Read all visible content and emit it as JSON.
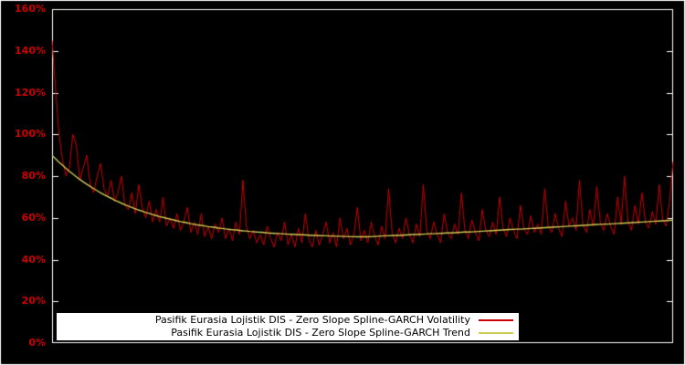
{
  "chart": {
    "background": "#000000",
    "border_color": "#ffffff",
    "axis_label_color": "#cc0000",
    "y_ticks": [
      "0%",
      "20%",
      "40%",
      "60%",
      "80%",
      "100%",
      "120%",
      "140%",
      "160%"
    ]
  },
  "legend": {
    "items": [
      {
        "label": "Pasifik Eurasia Lojistik DIS - Zero Slope Spline-GARCH Volatility",
        "color": "#cc0000"
      },
      {
        "label": "Pasifik Eurasia Lojistik DIS - Zero Slope Spline-GARCH Trend",
        "color": "#cccc55"
      }
    ]
  },
  "chart_data": {
    "type": "line",
    "title": "",
    "xlabel": "",
    "ylabel": "",
    "ylim": [
      0,
      160
    ],
    "y_unit": "%",
    "y_tick_step": 20,
    "grid": false,
    "legend_position": "bottom-center",
    "series": [
      {
        "name": "Pasifik Eurasia Lojistik DIS - Zero Slope Spline-GARCH Volatility",
        "color": "#cc0000",
        "values": [
          145,
          122,
          100,
          88,
          80,
          84,
          100,
          95,
          78,
          84,
          90,
          76,
          72,
          80,
          86,
          74,
          70,
          78,
          68,
          72,
          80,
          66,
          64,
          72,
          62,
          76,
          65,
          60,
          68,
          58,
          64,
          58,
          70,
          56,
          60,
          55,
          62,
          54,
          58,
          65,
          53,
          58,
          52,
          62,
          51,
          56,
          50,
          57,
          53,
          60,
          50,
          55,
          49,
          58,
          52,
          78,
          56,
          50,
          54,
          48,
          52,
          47,
          56,
          50,
          46,
          53,
          49,
          58,
          47,
          52,
          46,
          55,
          48,
          62,
          50,
          46,
          54,
          47,
          52,
          58,
          48,
          53,
          46,
          60,
          50,
          55,
          47,
          52,
          65,
          49,
          54,
          48,
          58,
          51,
          47,
          56,
          50,
          74,
          53,
          48,
          55,
          50,
          60,
          52,
          48,
          57,
          51,
          76,
          54,
          50,
          58,
          52,
          48,
          62,
          53,
          50,
          57,
          52,
          72,
          54,
          50,
          59,
          53,
          49,
          64,
          54,
          51,
          58,
          52,
          70,
          55,
          51,
          60,
          54,
          50,
          66,
          55,
          52,
          61,
          53,
          57,
          52,
          74,
          56,
          53,
          62,
          55,
          51,
          68,
          56,
          60,
          54,
          78,
          57,
          53,
          64,
          56,
          75,
          58,
          54,
          62,
          56,
          52,
          70,
          57,
          80,
          58,
          54,
          66,
          57,
          72,
          58,
          55,
          63,
          57,
          76,
          59,
          56,
          68,
          87
        ]
      },
      {
        "name": "Pasifik Eurasia Lojistik DIS - Zero Slope Spline-GARCH Trend",
        "color": "#cccc55",
        "values": [
          90.0,
          88.3,
          86.7,
          85.2,
          83.7,
          82.3,
          81.0,
          79.7,
          78.4,
          77.2,
          76.1,
          75.0,
          74.0,
          73.0,
          72.0,
          71.1,
          70.2,
          69.4,
          68.5,
          67.8,
          67.0,
          66.3,
          65.6,
          65.0,
          64.3,
          63.7,
          63.2,
          62.6,
          62.1,
          61.6,
          61.1,
          60.6,
          60.2,
          59.8,
          59.4,
          59.0,
          58.6,
          58.2,
          57.9,
          57.6,
          57.2,
          56.9,
          56.6,
          56.4,
          56.1,
          55.8,
          55.6,
          55.4,
          55.1,
          54.9,
          54.7,
          54.5,
          54.3,
          54.2,
          54.0,
          53.8,
          53.7,
          53.5,
          53.4,
          53.2,
          53.1,
          53.0,
          52.8,
          52.7,
          52.6,
          52.5,
          52.4,
          52.3,
          52.2,
          52.1,
          52.0,
          51.9,
          51.9,
          51.8,
          51.7,
          51.6,
          51.6,
          51.5,
          51.4,
          51.4,
          51.3,
          51.3,
          51.2,
          51.2,
          51.1,
          51.1,
          51.0,
          51.0,
          50.9,
          50.9,
          50.9,
          50.9,
          51.0,
          51.1,
          51.2,
          51.3,
          51.4,
          51.4,
          51.5,
          51.6,
          51.6,
          51.7,
          51.8,
          51.9,
          52.0,
          52.0,
          52.1,
          52.2,
          52.3,
          52.4,
          52.4,
          52.5,
          52.6,
          52.7,
          52.8,
          52.8,
          52.9,
          53.0,
          53.1,
          53.2,
          53.2,
          53.3,
          53.4,
          53.5,
          53.6,
          53.7,
          53.8,
          53.9,
          54.0,
          54.1,
          54.2,
          54.3,
          54.4,
          54.5,
          54.6,
          54.6,
          54.7,
          54.8,
          54.9,
          55.0,
          55.1,
          55.2,
          55.3,
          55.4,
          55.5,
          55.6,
          55.7,
          55.8,
          55.9,
          56.0,
          56.1,
          56.2,
          56.3,
          56.4,
          56.5,
          56.6,
          56.7,
          56.8,
          56.9,
          57.0,
          57.0,
          57.1,
          57.2,
          57.3,
          57.4,
          57.5,
          57.6,
          57.7,
          57.8,
          57.9,
          58.0,
          58.1,
          58.2,
          58.3,
          58.4,
          58.5,
          58.6,
          58.7,
          58.8,
          58.9
        ]
      }
    ]
  }
}
